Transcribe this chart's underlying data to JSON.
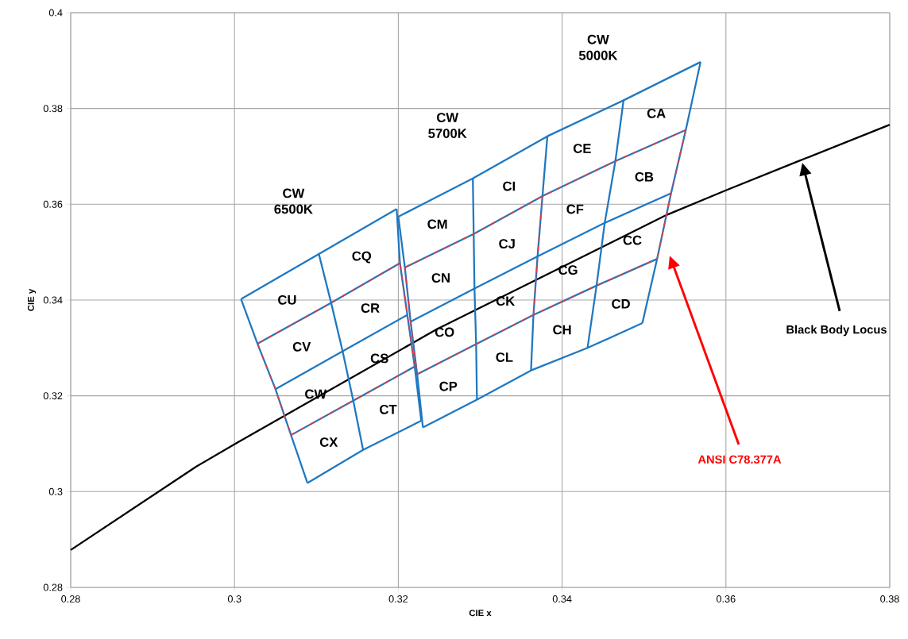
{
  "chart_data": {
    "type": "line",
    "xlabel": "CIE x",
    "ylabel": "CIE y",
    "xlim": [
      0.28,
      0.38
    ],
    "ylim": [
      0.28,
      0.4
    ],
    "xticks": [
      0.28,
      0.3,
      0.32,
      0.34,
      0.36,
      0.38
    ],
    "yticks": [
      0.28,
      0.3,
      0.32,
      0.34,
      0.36,
      0.38,
      0.4
    ],
    "grid": true,
    "series": [
      {
        "color": "#000000",
        "x": [
          0.28,
          0.2953,
          0.3004,
          0.3247,
          0.3528,
          0.36,
          0.369,
          0.38
        ],
        "values": [
          0.2878,
          0.3052,
          0.3103,
          0.3339,
          0.3578,
          0.3629,
          0.3691,
          0.3766
        ]
      },
      {
        "color": "#1f78c1",
        "x": [
          0.3008,
          0.3103,
          0.3198
        ],
        "values": [
          0.3402,
          0.3496,
          0.359
        ]
      },
      {
        "color": "#1f78c1",
        "x": [
          0.3028,
          0.3118,
          0.3202
        ],
        "values": [
          0.3309,
          0.3394,
          0.3477
        ]
      },
      {
        "color": "#1f78c1",
        "x": [
          0.305,
          0.3132,
          0.3211
        ],
        "values": [
          0.3214,
          0.3293,
          0.3369
        ]
      },
      {
        "color": "#1f78c1",
        "x": [
          0.3069,
          0.3145,
          0.322
        ],
        "values": [
          0.3118,
          0.319,
          0.3261
        ]
      },
      {
        "color": "#1f78c1",
        "x": [
          0.3089,
          0.3157,
          0.3228
        ],
        "values": [
          0.3018,
          0.3087,
          0.3148
        ]
      },
      {
        "color": "#1f78c1",
        "x": [
          0.32,
          0.3291,
          0.3382,
          0.3475,
          0.3569
        ],
        "values": [
          0.3574,
          0.3654,
          0.3742,
          0.3817,
          0.3897
        ]
      },
      {
        "color": "#1f78c1",
        "x": [
          0.3208,
          0.3292,
          0.3376,
          0.3465,
          0.3551
        ],
        "values": [
          0.3468,
          0.3538,
          0.3617,
          0.369,
          0.3755
        ]
      },
      {
        "color": "#1f78c1",
        "x": [
          0.3215,
          0.3293,
          0.337,
          0.3452,
          0.3533
        ],
        "values": [
          0.3355,
          0.3424,
          0.3491,
          0.3561,
          0.3623
        ]
      },
      {
        "color": "#1f78c1",
        "x": [
          0.3223,
          0.3295,
          0.3365,
          0.3442,
          0.3516
        ],
        "values": [
          0.3245,
          0.3308,
          0.3369,
          0.343,
          0.3486
        ]
      },
      {
        "color": "#1f78c1",
        "x": [
          0.323,
          0.3296,
          0.3362,
          0.3431,
          0.3498
        ],
        "values": [
          0.3134,
          0.3192,
          0.3253,
          0.33,
          0.3352
        ]
      },
      {
        "color": "#1f78c1",
        "x": [
          0.3008,
          0.3028,
          0.305,
          0.3069,
          0.3089
        ],
        "values": [
          0.3402,
          0.3309,
          0.3214,
          0.3118,
          0.3018
        ]
      },
      {
        "color": "#1f78c1",
        "x": [
          0.3103,
          0.3118,
          0.3132,
          0.3145,
          0.3157
        ],
        "values": [
          0.3496,
          0.3394,
          0.3293,
          0.319,
          0.3087
        ]
      },
      {
        "color": "#1f78c1",
        "x": [
          0.3198,
          0.3202,
          0.3211,
          0.322,
          0.3228
        ],
        "values": [
          0.359,
          0.3477,
          0.3369,
          0.3261,
          0.3148
        ]
      },
      {
        "color": "#1f78c1",
        "x": [
          0.32,
          0.3208,
          0.3215,
          0.3223,
          0.323
        ],
        "values": [
          0.3574,
          0.3468,
          0.3355,
          0.3245,
          0.3134
        ]
      },
      {
        "color": "#1f78c1",
        "x": [
          0.3291,
          0.3292,
          0.3293,
          0.3295,
          0.3296
        ],
        "values": [
          0.3654,
          0.3538,
          0.3424,
          0.3308,
          0.3192
        ]
      },
      {
        "color": "#1f78c1",
        "x": [
          0.3362,
          0.3365,
          0.337,
          0.3376,
          0.3382
        ],
        "values": [
          0.3253,
          0.3369,
          0.3491,
          0.3617,
          0.3742
        ]
      },
      {
        "color": "#1f78c1",
        "x": [
          0.3431,
          0.3442,
          0.3452,
          0.3465,
          0.3475
        ],
        "values": [
          0.33,
          0.343,
          0.3561,
          0.369,
          0.3817
        ]
      },
      {
        "color": "#1f78c1",
        "x": [
          0.3498,
          0.3516,
          0.3533,
          0.3551,
          0.3569
        ],
        "values": [
          0.3352,
          0.3486,
          0.3623,
          0.3755,
          0.3897
        ]
      },
      {
        "color": "#e8383d",
        "line_style": "dashed",
        "x": [
          0.3028,
          0.3118,
          0.3202
        ],
        "values": [
          0.3309,
          0.3394,
          0.3477
        ]
      },
      {
        "color": "#e8383d",
        "line_style": "dashed",
        "x": [
          0.3069,
          0.3145,
          0.322
        ],
        "values": [
          0.3118,
          0.319,
          0.3261
        ]
      },
      {
        "color": "#e8383d",
        "line_style": "dashed",
        "x": [
          0.3028,
          0.305,
          0.3069
        ],
        "values": [
          0.3309,
          0.3214,
          0.3118
        ]
      },
      {
        "color": "#e8383d",
        "line_style": "dashed",
        "x": [
          0.3202,
          0.3211,
          0.322
        ],
        "values": [
          0.3477,
          0.3369,
          0.3261
        ]
      },
      {
        "color": "#e8383d",
        "line_style": "dashed",
        "x": [
          0.3208,
          0.3292,
          0.3376,
          0.3465,
          0.3551
        ],
        "values": [
          0.3468,
          0.3538,
          0.3617,
          0.369,
          0.3755
        ]
      },
      {
        "color": "#e8383d",
        "line_style": "dashed",
        "x": [
          0.3223,
          0.3295,
          0.3365,
          0.3442,
          0.3516
        ],
        "values": [
          0.3245,
          0.3308,
          0.3369,
          0.343,
          0.3486
        ]
      },
      {
        "color": "#e8383d",
        "line_style": "dashed",
        "x": [
          0.3208,
          0.3215,
          0.3223
        ],
        "values": [
          0.3468,
          0.3355,
          0.3245
        ]
      },
      {
        "color": "#e8383d",
        "line_style": "dashed",
        "x": [
          0.3365,
          0.337,
          0.3376
        ],
        "values": [
          0.3369,
          0.3491,
          0.3617
        ]
      },
      {
        "color": "#e8383d",
        "line_style": "dashed",
        "x": [
          0.3516,
          0.3533,
          0.3551
        ],
        "values": [
          0.3486,
          0.3623,
          0.3755
        ]
      }
    ],
    "annotations": [
      "CU",
      "CQ",
      "CV",
      "CR",
      "CW",
      "CS",
      "CX",
      "CT",
      "CM",
      "CI",
      "CE",
      "CA",
      "CN",
      "CJ",
      "CF",
      "CB",
      "CO",
      "CK",
      "CG",
      "CC",
      "CP",
      "CL",
      "CH",
      "CD",
      "CW 6500K",
      "CW 5700K",
      "CW 5000K",
      "Black Body Locus",
      "ANSI C78.377A"
    ]
  }
}
